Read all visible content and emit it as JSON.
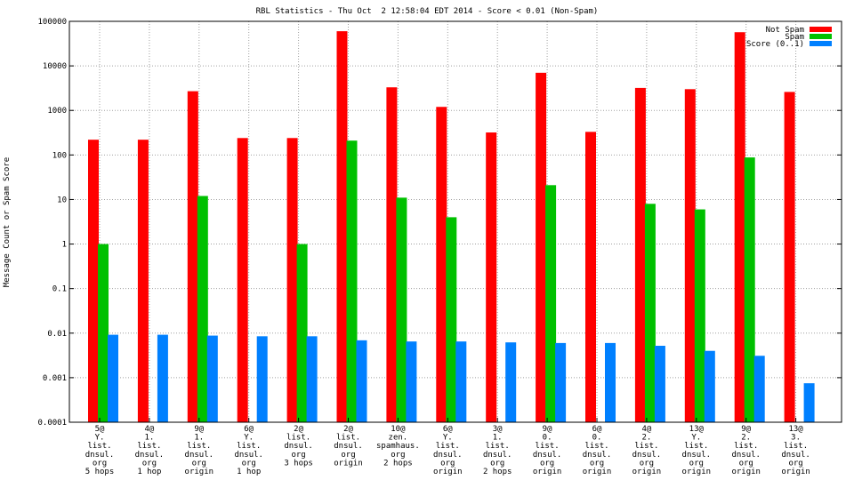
{
  "chart_data": {
    "type": "bar",
    "title": "RBL Statistics - Thu Oct  2 12:58:04 EDT 2014 - Score < 0.01 (Non-Spam)",
    "xlabel": "",
    "ylabel": "Message Count or Spam Score",
    "yscale": "log",
    "ylim": [
      0.0001,
      100000
    ],
    "yticks": [
      "0.0001",
      "0.001",
      "0.01",
      "0.1",
      "1",
      "10",
      "100",
      "1000",
      "10000",
      "100000"
    ],
    "grid": true,
    "legend_position": "top-right",
    "categories": [
      [
        "5@",
        "Y.",
        "list.",
        "dnsul.",
        "org",
        "5 hops"
      ],
      [
        "4@",
        "1.",
        "list.",
        "dnsul.",
        "org",
        "1 hop"
      ],
      [
        "9@",
        "1.",
        "list.",
        "dnsul.",
        "org",
        "origin"
      ],
      [
        "6@",
        "Y.",
        "list.",
        "dnsul.",
        "org",
        "1 hop"
      ],
      [
        "2@",
        "list.",
        "dnsul.",
        "org",
        "3 hops"
      ],
      [
        "2@",
        "list.",
        "dnsul.",
        "org",
        "origin"
      ],
      [
        "10@",
        "zen.",
        "spamhaus.",
        "org",
        "2 hops"
      ],
      [
        "6@",
        "Y.",
        "list.",
        "dnsul.",
        "org",
        "origin"
      ],
      [
        "3@",
        "1.",
        "list.",
        "dnsul.",
        "org",
        "2 hops"
      ],
      [
        "9@",
        "0.",
        "list.",
        "dnsul.",
        "org",
        "origin"
      ],
      [
        "6@",
        "0.",
        "list.",
        "dnsul.",
        "org",
        "origin"
      ],
      [
        "4@",
        "2.",
        "list.",
        "dnsul.",
        "org",
        "origin"
      ],
      [
        "13@",
        "Y.",
        "list.",
        "dnsul.",
        "org",
        "origin"
      ],
      [
        "9@",
        "2.",
        "list.",
        "dnsul.",
        "org",
        "origin"
      ],
      [
        "13@",
        "3.",
        "list.",
        "dnsul.",
        "org",
        "origin"
      ]
    ],
    "series": [
      {
        "name": "Not Spam",
        "color": "#ff0000",
        "values": [
          220,
          220,
          2700,
          240,
          240,
          60000,
          3300,
          1200,
          320,
          7000,
          330,
          3200,
          3000,
          57000,
          2600
        ]
      },
      {
        "name": "Spam",
        "color": "#00c000",
        "values": [
          1,
          null,
          12,
          null,
          1,
          210,
          11,
          4,
          null,
          21,
          null,
          8,
          6,
          88,
          null
        ]
      },
      {
        "name": "Score (0..1)",
        "color": "#0080ff",
        "values": [
          0.0092,
          0.0092,
          0.0088,
          0.0085,
          0.0085,
          0.0069,
          0.0065,
          0.0065,
          0.0062,
          0.006,
          0.006,
          0.0052,
          0.004,
          0.0031,
          0.00075
        ]
      }
    ]
  }
}
